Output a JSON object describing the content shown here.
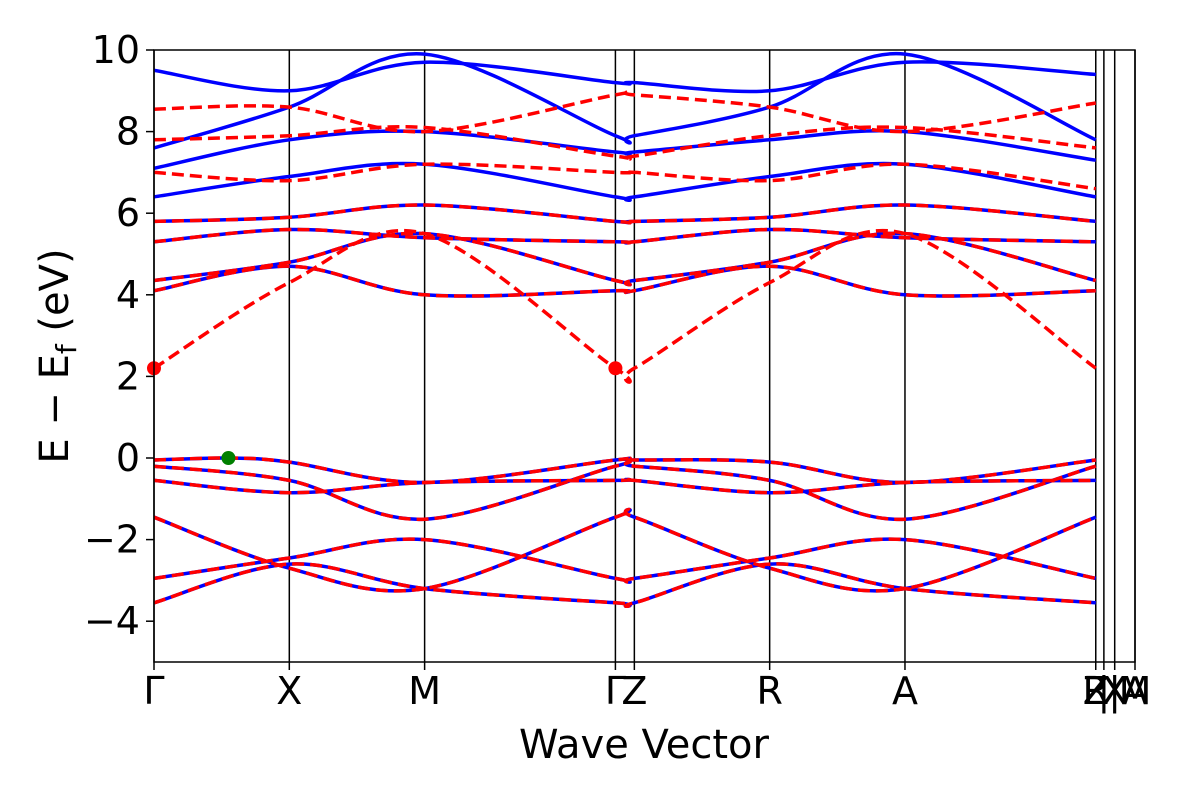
{
  "chart_data": {
    "type": "line",
    "title": "",
    "xlabel": "Wave Vector",
    "ylabel": "E − E",
    "ylabel_sub": "f",
    "ylabel_unit": " (eV)",
    "ylim": [
      -5,
      10
    ],
    "yticks": [
      -4,
      -2,
      0,
      2,
      4,
      6,
      8,
      10
    ],
    "ytick_labels": [
      "−4",
      "−2",
      "0",
      "2",
      "4",
      "6",
      "8",
      "10"
    ],
    "xlim": [
      0,
      7.25
    ],
    "kpoints": [
      {
        "label": "Γ",
        "x": 0.0
      },
      {
        "label": "X",
        "x": 1.0
      },
      {
        "label": "M",
        "x": 2.0
      },
      {
        "label": "Γ",
        "x": 3.41
      },
      {
        "label": "Z",
        "x": 3.55
      },
      {
        "label": "R",
        "x": 4.55
      },
      {
        "label": "A",
        "x": 5.55
      },
      {
        "label": "Z",
        "x": 6.96
      },
      {
        "label": "R",
        "x": 6.96
      },
      {
        "label": "|",
        "x": 7.02
      },
      {
        "label": "X",
        "x": 7.1
      },
      {
        "label": "|",
        "x": 7.1
      },
      {
        "label": "A",
        "x": 7.25
      },
      {
        "label": "M",
        "x": 7.25
      }
    ],
    "grid": false,
    "colors": {
      "blue": "#0000ff",
      "red": "#ff0000",
      "green": "#008000"
    },
    "series": [
      {
        "style": "solid-blue",
        "x": [
          0,
          1,
          2,
          3.41,
          3.55,
          4.55,
          5.55,
          6.96
        ],
        "y": [
          -3.55,
          -2.6,
          -3.2,
          -3.55,
          -3.55,
          -2.6,
          -3.2,
          -3.55
        ]
      },
      {
        "style": "solid-blue",
        "x": [
          0,
          1,
          2,
          3.41,
          3.55,
          4.55,
          5.55,
          6.96
        ],
        "y": [
          -2.95,
          -2.45,
          -2.0,
          -2.95,
          -2.95,
          -2.45,
          -2.0,
          -2.95
        ]
      },
      {
        "style": "solid-blue",
        "x": [
          0,
          1,
          2,
          3.41,
          3.55,
          4.55,
          5.55,
          6.96
        ],
        "y": [
          -1.45,
          -2.7,
          -3.2,
          -1.45,
          -1.45,
          -2.7,
          -3.2,
          -1.45
        ]
      },
      {
        "style": "solid-blue",
        "x": [
          0,
          1,
          2,
          3.41,
          3.55,
          4.55,
          5.55,
          6.96
        ],
        "y": [
          -0.55,
          -0.85,
          -0.6,
          -0.55,
          -0.55,
          -0.85,
          -0.6,
          -0.55
        ]
      },
      {
        "style": "solid-blue",
        "x": [
          0,
          1,
          2,
          3.41,
          3.55,
          4.55,
          5.55,
          6.96
        ],
        "y": [
          -0.2,
          -0.55,
          -1.5,
          -0.2,
          -0.2,
          -0.55,
          -1.5,
          -0.2
        ]
      },
      {
        "style": "solid-blue",
        "x": [
          0,
          0.55,
          1,
          2,
          3.41,
          3.55,
          4.55,
          5.55,
          6.96
        ],
        "y": [
          -0.05,
          0.0,
          -0.1,
          -0.6,
          -0.05,
          -0.05,
          -0.1,
          -0.6,
          -0.05
        ]
      },
      {
        "style": "solid-blue",
        "x": [
          0,
          1,
          2,
          3.41,
          3.55,
          4.55,
          5.55,
          6.96
        ],
        "y": [
          4.1,
          4.7,
          4.0,
          4.1,
          4.1,
          4.7,
          4.0,
          4.1
        ]
      },
      {
        "style": "solid-blue",
        "x": [
          0,
          1,
          2,
          3.41,
          3.55,
          4.55,
          5.55,
          6.96
        ],
        "y": [
          4.35,
          4.8,
          5.5,
          4.35,
          4.35,
          4.8,
          5.5,
          4.35
        ]
      },
      {
        "style": "solid-blue",
        "x": [
          0,
          1,
          2,
          3.41,
          3.55,
          4.55,
          5.55,
          6.96
        ],
        "y": [
          5.3,
          5.6,
          5.4,
          5.3,
          5.3,
          5.6,
          5.4,
          5.3
        ]
      },
      {
        "style": "solid-blue",
        "x": [
          0,
          1,
          2,
          3.41,
          3.55,
          4.55,
          5.55,
          6.96
        ],
        "y": [
          5.8,
          5.9,
          6.2,
          5.8,
          5.8,
          5.9,
          6.2,
          5.8
        ]
      },
      {
        "style": "solid-blue",
        "x": [
          0,
          1,
          2,
          3.41,
          3.55,
          4.55,
          5.55,
          6.96
        ],
        "y": [
          6.4,
          6.9,
          7.2,
          6.4,
          6.4,
          6.9,
          7.2,
          6.4
        ]
      },
      {
        "style": "solid-blue",
        "x": [
          0,
          1,
          2,
          3.41,
          3.55,
          4.55,
          5.55,
          6.96
        ],
        "y": [
          7.1,
          7.8,
          8.0,
          7.5,
          7.5,
          7.8,
          8.0,
          7.3
        ]
      },
      {
        "style": "solid-blue",
        "x": [
          0,
          1,
          2,
          3.41,
          3.55,
          4.55,
          5.55,
          6.96
        ],
        "y": [
          7.6,
          8.6,
          9.9,
          7.9,
          7.9,
          8.6,
          9.9,
          7.8
        ]
      },
      {
        "style": "solid-blue",
        "x": [
          0,
          1,
          2,
          3.41,
          3.55,
          4.55,
          5.55,
          6.96
        ],
        "y": [
          9.5,
          9.0,
          9.7,
          9.2,
          9.2,
          9.0,
          9.7,
          9.4
        ]
      },
      {
        "style": "dashed-red",
        "x": [
          0,
          1,
          2,
          3.41,
          3.55,
          4.55,
          5.55,
          6.96
        ],
        "y": [
          -3.55,
          -2.6,
          -3.2,
          -3.55,
          -3.55,
          -2.6,
          -3.2,
          -3.55
        ]
      },
      {
        "style": "dashed-red",
        "x": [
          0,
          1,
          2,
          3.41,
          3.55,
          4.55,
          5.55,
          6.96
        ],
        "y": [
          -2.95,
          -2.45,
          -2.0,
          -2.95,
          -2.95,
          -2.45,
          -2.0,
          -2.95
        ]
      },
      {
        "style": "dashed-red",
        "x": [
          0,
          1,
          2,
          3.41,
          3.55,
          4.55,
          5.55,
          6.96
        ],
        "y": [
          -1.45,
          -2.7,
          -3.2,
          -1.45,
          -1.45,
          -2.7,
          -3.2,
          -1.45
        ]
      },
      {
        "style": "dashed-red",
        "x": [
          0,
          1,
          2,
          3.41,
          3.55,
          4.55,
          5.55,
          6.96
        ],
        "y": [
          -0.55,
          -0.85,
          -0.6,
          -0.55,
          -0.55,
          -0.85,
          -0.6,
          -0.55
        ]
      },
      {
        "style": "dashed-red",
        "x": [
          0,
          1,
          2,
          3.41,
          3.55,
          4.55,
          5.55,
          6.96
        ],
        "y": [
          -0.2,
          -0.55,
          -1.5,
          -0.2,
          -0.2,
          -0.55,
          -1.5,
          -0.2
        ]
      },
      {
        "style": "dashed-red",
        "x": [
          0,
          0.55,
          1,
          2,
          3.41,
          3.55,
          4.55,
          5.55,
          6.96
        ],
        "y": [
          -0.05,
          0.0,
          -0.1,
          -0.6,
          -0.05,
          -0.05,
          -0.1,
          -0.6,
          -0.05
        ]
      },
      {
        "style": "dashed-red",
        "x": [
          0,
          1,
          2,
          3.41,
          3.55,
          4.55,
          5.55,
          6.96
        ],
        "y": [
          2.2,
          4.3,
          5.5,
          2.2,
          2.2,
          4.3,
          5.5,
          2.2
        ]
      },
      {
        "style": "dashed-red",
        "x": [
          0,
          1,
          2,
          3.41,
          3.55,
          4.55,
          5.55,
          6.96
        ],
        "y": [
          4.1,
          4.7,
          4.0,
          4.1,
          4.1,
          4.7,
          4.0,
          4.1
        ]
      },
      {
        "style": "dashed-red",
        "x": [
          0,
          1,
          2,
          3.41,
          3.55,
          4.55,
          5.55,
          6.96
        ],
        "y": [
          4.35,
          4.8,
          5.5,
          4.35,
          4.35,
          4.8,
          5.5,
          4.35
        ]
      },
      {
        "style": "dashed-red",
        "x": [
          0,
          1,
          2,
          3.41,
          3.55,
          4.55,
          5.55,
          6.96
        ],
        "y": [
          5.3,
          5.6,
          5.4,
          5.3,
          5.3,
          5.6,
          5.4,
          5.3
        ]
      },
      {
        "style": "dashed-red",
        "x": [
          0,
          1,
          2,
          3.41,
          3.55,
          4.55,
          5.55,
          6.96
        ],
        "y": [
          5.8,
          5.9,
          6.2,
          5.8,
          5.8,
          5.9,
          6.2,
          5.8
        ]
      },
      {
        "style": "dashed-red",
        "x": [
          0,
          1,
          2,
          3.41,
          3.55,
          4.55,
          5.55,
          6.96
        ],
        "y": [
          7.0,
          6.8,
          7.2,
          7.0,
          7.0,
          6.8,
          7.2,
          6.6
        ]
      },
      {
        "style": "dashed-red",
        "x": [
          0,
          1,
          2,
          3.41,
          3.55,
          4.55,
          5.55,
          6.96
        ],
        "y": [
          7.8,
          7.9,
          8.1,
          7.4,
          7.4,
          7.9,
          8.1,
          7.6
        ]
      },
      {
        "style": "dashed-red",
        "x": [
          0,
          1,
          2,
          3.41,
          3.55,
          4.55,
          5.55,
          6.96
        ],
        "y": [
          8.55,
          8.6,
          8.0,
          8.9,
          8.9,
          8.6,
          8.0,
          8.7
        ]
      }
    ],
    "markers": [
      {
        "x": 0.0,
        "y": 2.2,
        "color": "red"
      },
      {
        "x": 3.41,
        "y": 2.2,
        "color": "red"
      },
      {
        "x": 0.55,
        "y": 0.0,
        "color": "green"
      }
    ]
  }
}
